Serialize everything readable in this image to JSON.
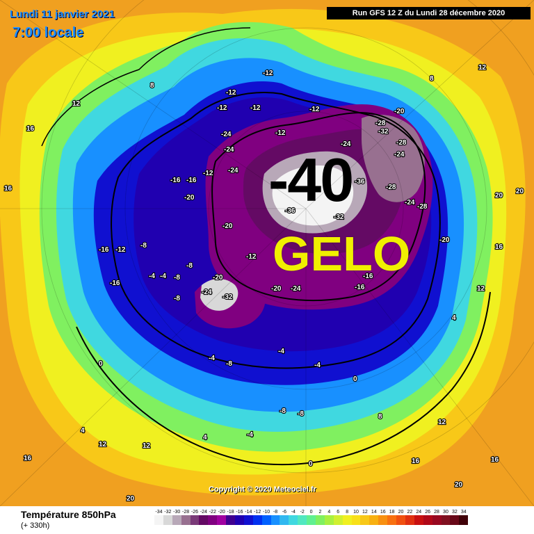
{
  "header": {
    "date_line": "Lundi 11 janvier 2021",
    "time_line": "7:00 locale",
    "run_label": "Run GFS 12 Z du Lundi 28 décembre 2020"
  },
  "overlay": {
    "big_value": "-40",
    "big_word": "GELO"
  },
  "copyright": "Copyright © 2020 Meteociel.fr",
  "legend": {
    "title": "Température 850hPa",
    "subtitle": "(+ 330h)",
    "labels": [
      "-34",
      "-32",
      "-30",
      "-28",
      "-26",
      "-24",
      "-22",
      "-20",
      "-18",
      "-16",
      "-14",
      "-12",
      "-10",
      "-8",
      "-6",
      "-4",
      "-2",
      "0",
      "2",
      "4",
      "6",
      "8",
      "10",
      "12",
      "14",
      "16",
      "18",
      "20",
      "22",
      "24",
      "26",
      "28",
      "30",
      "32",
      "34"
    ],
    "colors": [
      "#f4f4f4",
      "#d8d8d8",
      "#b8a8b8",
      "#987090",
      "#7a3a78",
      "#640a64",
      "#800080",
      "#a000a0",
      "#400090",
      "#2000b0",
      "#1010d0",
      "#0030f0",
      "#0060ff",
      "#1890ff",
      "#30b8f0",
      "#40d8e0",
      "#50e8c0",
      "#60f090",
      "#80f060",
      "#a8f040",
      "#d0f030",
      "#f0f020",
      "#f8e018",
      "#f8c818",
      "#f8b010",
      "#f89010",
      "#f87010",
      "#f05010",
      "#e03010",
      "#c81010",
      "#b00818",
      "#980820",
      "#801020",
      "#680818",
      "#400008"
    ]
  },
  "map_labels": [
    {
      "id": "l1",
      "text": "-12"
    },
    {
      "id": "l2",
      "text": "-12"
    },
    {
      "id": "l3",
      "text": "-12"
    },
    {
      "id": "l4",
      "text": "-12"
    },
    {
      "id": "l5",
      "text": "-12"
    },
    {
      "id": "l6",
      "text": "-24"
    },
    {
      "id": "l7",
      "text": "-24"
    },
    {
      "id": "l8",
      "text": "-24"
    },
    {
      "id": "l9",
      "text": "-20"
    },
    {
      "id": "l10",
      "text": "-28"
    },
    {
      "id": "l11",
      "text": "-32"
    },
    {
      "id": "l12",
      "text": "-28"
    },
    {
      "id": "l13",
      "text": "-24"
    },
    {
      "id": "l14",
      "text": "-24"
    },
    {
      "id": "l15",
      "text": "-20"
    },
    {
      "id": "l16",
      "text": "-16"
    },
    {
      "id": "l17",
      "text": "-16"
    },
    {
      "id": "l18",
      "text": "-20"
    },
    {
      "id": "l19",
      "text": "-16"
    },
    {
      "id": "l20",
      "text": "-12"
    },
    {
      "id": "l21",
      "text": "-8"
    },
    {
      "id": "l22",
      "text": "-4"
    },
    {
      "id": "l23",
      "text": "-4"
    },
    {
      "id": "l24",
      "text": "-8"
    },
    {
      "id": "l25",
      "text": "-8"
    },
    {
      "id": "l26",
      "text": "-20"
    },
    {
      "id": "l27",
      "text": "-24"
    },
    {
      "id": "l28",
      "text": "-32"
    },
    {
      "id": "l29",
      "text": "-20"
    },
    {
      "id": "l30",
      "text": "-24"
    },
    {
      "id": "l31",
      "text": "-16"
    },
    {
      "id": "l32",
      "text": "-16"
    },
    {
      "id": "l33",
      "text": "-36"
    },
    {
      "id": "l34",
      "text": "-36"
    },
    {
      "id": "l35",
      "text": "-32"
    },
    {
      "id": "l36",
      "text": "-28"
    },
    {
      "id": "l37",
      "text": "-24"
    },
    {
      "id": "l38",
      "text": "-28"
    },
    {
      "id": "l39",
      "text": "-20"
    },
    {
      "id": "l40",
      "text": "-12"
    },
    {
      "id": "l41",
      "text": "-8"
    },
    {
      "id": "l42",
      "text": "-4"
    },
    {
      "id": "l43",
      "text": "0"
    },
    {
      "id": "l44",
      "text": "4"
    },
    {
      "id": "l45",
      "text": "8"
    },
    {
      "id": "l46",
      "text": "12"
    },
    {
      "id": "l47",
      "text": "16"
    },
    {
      "id": "l48",
      "text": "16"
    },
    {
      "id": "l49",
      "text": "20"
    },
    {
      "id": "l50",
      "text": "20"
    },
    {
      "id": "l51",
      "text": "12"
    },
    {
      "id": "l52",
      "text": "16"
    },
    {
      "id": "l53",
      "text": "8"
    },
    {
      "id": "l54",
      "text": "12"
    },
    {
      "id": "l55",
      "text": "4"
    },
    {
      "id": "l56",
      "text": "0"
    },
    {
      "id": "l57",
      "text": "-4"
    },
    {
      "id": "l58",
      "text": "-8"
    },
    {
      "id": "l59",
      "text": "-4"
    },
    {
      "id": "l60",
      "text": "0"
    },
    {
      "id": "l61",
      "text": "4"
    },
    {
      "id": "l62",
      "text": "8"
    },
    {
      "id": "l63",
      "text": "12"
    },
    {
      "id": "l64",
      "text": "16"
    },
    {
      "id": "l65",
      "text": "12"
    },
    {
      "id": "l66",
      "text": "16"
    },
    {
      "id": "l67",
      "text": "20"
    },
    {
      "id": "l68",
      "text": "20"
    },
    {
      "id": "l69",
      "text": "16"
    },
    {
      "id": "l70",
      "text": "12"
    },
    {
      "id": "l71",
      "text": "-16"
    },
    {
      "id": "l72",
      "text": "-12"
    },
    {
      "id": "l73",
      "text": "-8"
    },
    {
      "id": "l74",
      "text": "-12"
    },
    {
      "id": "l75",
      "text": "-4"
    },
    {
      "id": "l76",
      "text": "-8"
    }
  ],
  "colors": {
    "outer_warm": "#f0a020",
    "orange": "#f8c818",
    "yellow": "#f0f020",
    "green": "#80f060",
    "cyan": "#40d8e0",
    "blue": "#1010d0",
    "purple": "#800080",
    "white_core": "#f4f4f4"
  }
}
